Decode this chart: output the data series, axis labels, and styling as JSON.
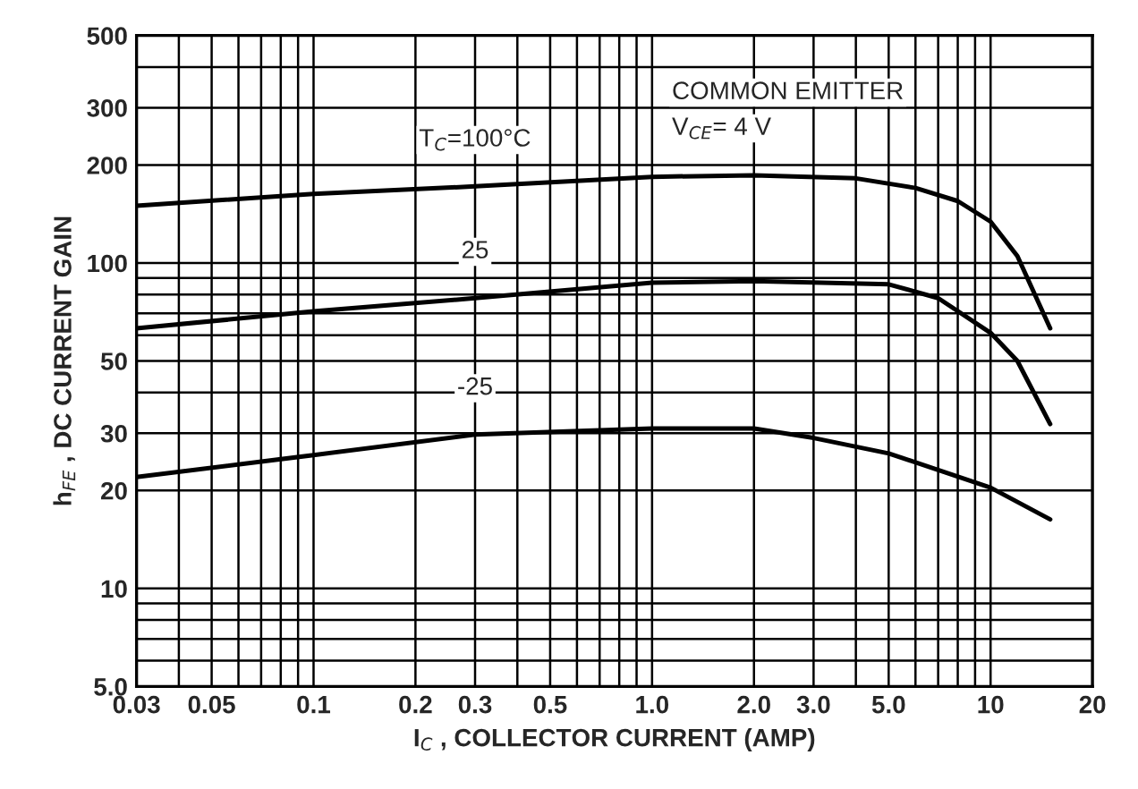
{
  "chart_data": {
    "type": "line",
    "xlabel": "I$_{C}$ , COLLECTOR CURRENT (AMP)",
    "ylabel": "h$_{FE}$ , DC CURRENT GAIN",
    "annotations": [
      "COMMON EMITTER",
      "V$_{CE}$= 4 V"
    ],
    "log": "xy",
    "grid": true,
    "legend": false,
    "xlim": [
      0.03,
      20
    ],
    "ylim": [
      5,
      500
    ],
    "xticks": [
      0.03,
      {
        "value": 0.04,
        "label": null
      },
      0.05,
      {
        "value": 0.06,
        "label": null
      },
      {
        "value": 0.07,
        "label": null
      },
      {
        "value": 0.08,
        "label": null
      },
      {
        "value": 0.09,
        "label": null
      },
      0.1,
      0.2,
      0.3,
      {
        "value": 0.4,
        "label": null
      },
      0.5,
      {
        "value": 0.6,
        "label": null
      },
      {
        "value": 0.7,
        "label": null
      },
      {
        "value": 0.8,
        "label": null
      },
      {
        "value": 0.9,
        "label": null
      },
      {
        "value": 1,
        "label": "1.0"
      },
      {
        "value": 2,
        "label": "2.0"
      },
      {
        "value": 3,
        "label": "3.0"
      },
      {
        "value": 4,
        "label": null
      },
      {
        "value": 5,
        "label": "5.0"
      },
      {
        "value": 6,
        "label": null
      },
      {
        "value": 7,
        "label": null
      },
      {
        "value": 8,
        "label": null
      },
      {
        "value": 9,
        "label": null
      },
      10,
      20
    ],
    "yticks": [
      {
        "value": 5,
        "label": "5.0"
      },
      {
        "value": 6,
        "label": null
      },
      {
        "value": 7,
        "label": null
      },
      {
        "value": 8,
        "label": null
      },
      {
        "value": 9,
        "label": null
      },
      10,
      20,
      30,
      {
        "value": 40,
        "label": null
      },
      50,
      {
        "value": 60,
        "label": null
      },
      {
        "value": 70,
        "label": null
      },
      {
        "value": 80,
        "label": null
      },
      {
        "value": 90,
        "label": null
      },
      100,
      200,
      300,
      {
        "value": 400,
        "label": null
      },
      500
    ],
    "series": [
      {
        "name": "T$_{C}$=100°C",
        "color": "#000000",
        "x": [
          0.03,
          0.1,
          0.3,
          1,
          2,
          4,
          6,
          8,
          10,
          12,
          15
        ],
        "values": [
          150,
          163,
          172,
          184,
          186,
          182,
          170,
          155,
          134,
          105,
          63
        ]
      },
      {
        "name": "25",
        "color": "#000000",
        "x": [
          0.03,
          0.1,
          0.3,
          1,
          2,
          5,
          7,
          10,
          12,
          15
        ],
        "values": [
          63,
          71,
          78,
          87,
          88,
          86,
          78,
          61,
          50,
          32
        ]
      },
      {
        "name": "-25",
        "color": "#000000",
        "x": [
          0.03,
          0.1,
          0.3,
          1,
          2,
          3,
          5,
          10,
          15
        ],
        "values": [
          22,
          25.7,
          29.7,
          31,
          31,
          29,
          26,
          20.4,
          16.3
        ]
      }
    ]
  }
}
